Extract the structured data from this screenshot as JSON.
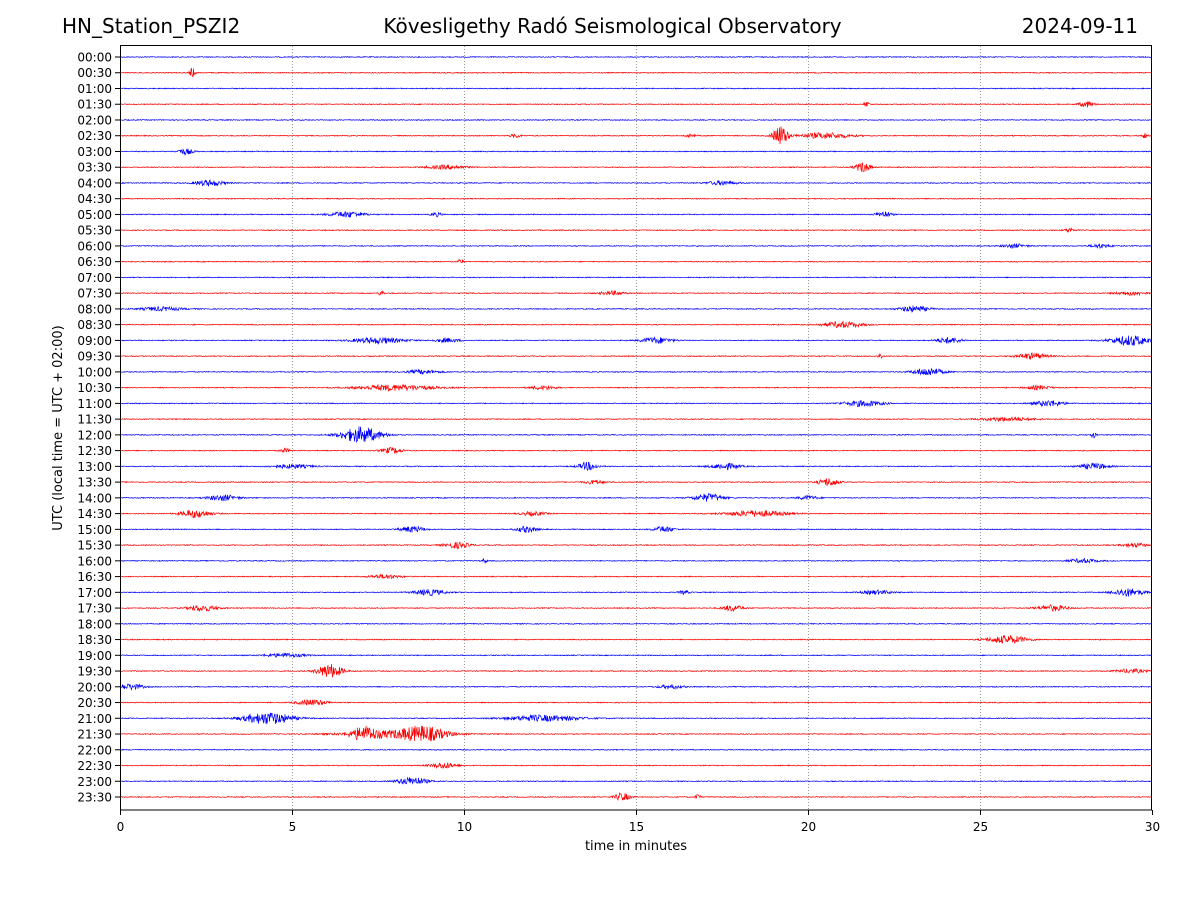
{
  "header": {
    "station": "HN_Station_PSZI2",
    "title": "Kövesligethy Radó Seismological Observatory",
    "date": "2024-09-11"
  },
  "chart_data": {
    "type": "line",
    "title": "Kövesligethy Radó Seismological Observatory",
    "xlabel": "time in minutes",
    "ylabel": "UTC (local time = UTC + 02:00)",
    "xlim": [
      0,
      30
    ],
    "xticks": [
      "0",
      "5",
      "10",
      "15",
      "20",
      "25",
      "30"
    ],
    "xtick_values": [
      0,
      5,
      10,
      15,
      20,
      25,
      30
    ],
    "grid": "vertical dotted at x ticks",
    "colors": {
      "even_row": "#0000ff",
      "odd_row": "#ff0000",
      "grid": "#808080",
      "frame": "#000000"
    },
    "rows": [
      {
        "label": "00:00",
        "events": []
      },
      {
        "label": "00:30",
        "events": [
          [
            2.1,
            5,
            0.1
          ]
        ]
      },
      {
        "label": "01:00",
        "events": []
      },
      {
        "label": "01:30",
        "events": [
          [
            21.7,
            3,
            0.1
          ],
          [
            28.1,
            3,
            0.3
          ]
        ]
      },
      {
        "label": "02:00",
        "events": []
      },
      {
        "label": "02:30",
        "events": [
          [
            19.2,
            10,
            0.3
          ],
          [
            20.5,
            3,
            1.0
          ],
          [
            16.6,
            2,
            0.2
          ],
          [
            11.5,
            2,
            0.2
          ],
          [
            29.8,
            3,
            0.1
          ]
        ]
      },
      {
        "label": "03:00",
        "events": [
          [
            1.9,
            3,
            0.3
          ]
        ]
      },
      {
        "label": "03:30",
        "events": [
          [
            21.6,
            5,
            0.3
          ],
          [
            9.5,
            2,
            0.8
          ]
        ]
      },
      {
        "label": "04:00",
        "events": [
          [
            2.6,
            3,
            0.6
          ],
          [
            17.5,
            2,
            0.6
          ]
        ]
      },
      {
        "label": "04:30",
        "events": []
      },
      {
        "label": "05:00",
        "events": [
          [
            6.6,
            3,
            0.7
          ],
          [
            22.2,
            3,
            0.3
          ],
          [
            9.2,
            2,
            0.2
          ]
        ]
      },
      {
        "label": "05:30",
        "events": [
          [
            27.6,
            2,
            0.2
          ]
        ]
      },
      {
        "label": "06:00",
        "events": [
          [
            28.5,
            2,
            0.4
          ],
          [
            26.0,
            2,
            0.5
          ]
        ]
      },
      {
        "label": "06:30",
        "events": [
          [
            9.9,
            3,
            0.1
          ]
        ]
      },
      {
        "label": "07:00",
        "events": []
      },
      {
        "label": "07:30",
        "events": [
          [
            7.6,
            3,
            0.1
          ],
          [
            14.3,
            2,
            0.5
          ],
          [
            29.4,
            2,
            0.6
          ]
        ]
      },
      {
        "label": "08:00",
        "events": [
          [
            23.1,
            3,
            0.6
          ],
          [
            1.2,
            2,
            0.8
          ]
        ]
      },
      {
        "label": "08:30",
        "events": [
          [
            21.0,
            3,
            0.8
          ]
        ]
      },
      {
        "label": "09:00",
        "events": [
          [
            29.4,
            5,
            0.8
          ],
          [
            7.5,
            3,
            1.0
          ],
          [
            15.6,
            3,
            0.6
          ],
          [
            24.1,
            3,
            0.5
          ],
          [
            9.5,
            2,
            0.5
          ]
        ]
      },
      {
        "label": "09:30",
        "events": [
          [
            26.5,
            3,
            0.6
          ],
          [
            22.1,
            3,
            0.1
          ]
        ]
      },
      {
        "label": "10:00",
        "events": [
          [
            23.5,
            4,
            0.6
          ],
          [
            8.8,
            2,
            0.6
          ]
        ]
      },
      {
        "label": "10:30",
        "events": [
          [
            8.0,
            3,
            1.5
          ],
          [
            12.3,
            2,
            0.5
          ],
          [
            26.7,
            2,
            0.5
          ]
        ]
      },
      {
        "label": "11:00",
        "events": [
          [
            21.6,
            3,
            0.8
          ],
          [
            27.0,
            3,
            0.6
          ]
        ]
      },
      {
        "label": "11:30",
        "events": [
          [
            25.8,
            2,
            1.0
          ]
        ]
      },
      {
        "label": "12:00",
        "events": [
          [
            7.0,
            8,
            0.8
          ],
          [
            28.3,
            3,
            0.1
          ]
        ]
      },
      {
        "label": "12:30",
        "events": [
          [
            7.9,
            3,
            0.4
          ],
          [
            4.8,
            2,
            0.2
          ]
        ]
      },
      {
        "label": "13:00",
        "events": [
          [
            13.6,
            4,
            0.4
          ],
          [
            17.6,
            3,
            0.6
          ],
          [
            28.3,
            3,
            0.6
          ],
          [
            5.0,
            2,
            0.8
          ]
        ]
      },
      {
        "label": "13:30",
        "events": [
          [
            20.6,
            4,
            0.4
          ],
          [
            13.8,
            2,
            0.4
          ]
        ]
      },
      {
        "label": "14:00",
        "events": [
          [
            17.1,
            4,
            0.6
          ],
          [
            3.0,
            3,
            0.6
          ],
          [
            20.0,
            2,
            0.4
          ]
        ]
      },
      {
        "label": "14:30",
        "events": [
          [
            2.2,
            4,
            0.6
          ],
          [
            18.5,
            3,
            1.2
          ],
          [
            12.0,
            2,
            0.5
          ]
        ]
      },
      {
        "label": "15:00",
        "events": [
          [
            8.5,
            3,
            0.5
          ],
          [
            11.8,
            3,
            0.4
          ],
          [
            15.8,
            3,
            0.4
          ]
        ]
      },
      {
        "label": "15:30",
        "events": [
          [
            9.8,
            3,
            0.5
          ],
          [
            29.5,
            2,
            0.5
          ]
        ]
      },
      {
        "label": "16:00",
        "events": [
          [
            10.6,
            2,
            0.1
          ],
          [
            28.0,
            2,
            0.6
          ]
        ]
      },
      {
        "label": "16:30",
        "events": [
          [
            7.7,
            2,
            0.6
          ]
        ]
      },
      {
        "label": "17:00",
        "events": [
          [
            29.3,
            4,
            0.6
          ],
          [
            9.0,
            3,
            0.6
          ],
          [
            22.0,
            2,
            0.6
          ],
          [
            16.4,
            2,
            0.2
          ]
        ]
      },
      {
        "label": "17:30",
        "events": [
          [
            2.4,
            3,
            0.6
          ],
          [
            17.8,
            3,
            0.4
          ],
          [
            27.1,
            3,
            0.6
          ]
        ]
      },
      {
        "label": "18:00",
        "events": []
      },
      {
        "label": "18:30",
        "events": [
          [
            25.8,
            4,
            0.8
          ]
        ]
      },
      {
        "label": "19:00",
        "events": [
          [
            4.8,
            2,
            0.8
          ]
        ]
      },
      {
        "label": "19:30",
        "events": [
          [
            6.1,
            7,
            0.5
          ],
          [
            29.4,
            2,
            0.6
          ]
        ]
      },
      {
        "label": "20:00",
        "events": [
          [
            0.3,
            3,
            0.5
          ],
          [
            16.0,
            2,
            0.5
          ]
        ]
      },
      {
        "label": "20:30",
        "events": [
          [
            5.6,
            3,
            0.6
          ]
        ]
      },
      {
        "label": "21:00",
        "events": [
          [
            4.3,
            6,
            1.0
          ],
          [
            12.3,
            3,
            1.5
          ]
        ]
      },
      {
        "label": "21:30",
        "events": [
          [
            7.1,
            6,
            0.5
          ],
          [
            8.8,
            6,
            0.9
          ],
          [
            8.0,
            3,
            2.0
          ]
        ]
      },
      {
        "label": "22:00",
        "events": []
      },
      {
        "label": "22:30",
        "events": [
          [
            9.4,
            3,
            0.5
          ]
        ]
      },
      {
        "label": "23:00",
        "events": [
          [
            8.5,
            4,
            0.6
          ]
        ]
      },
      {
        "label": "23:30",
        "events": [
          [
            14.6,
            4,
            0.3
          ],
          [
            16.8,
            3,
            0.1
          ]
        ]
      }
    ]
  }
}
